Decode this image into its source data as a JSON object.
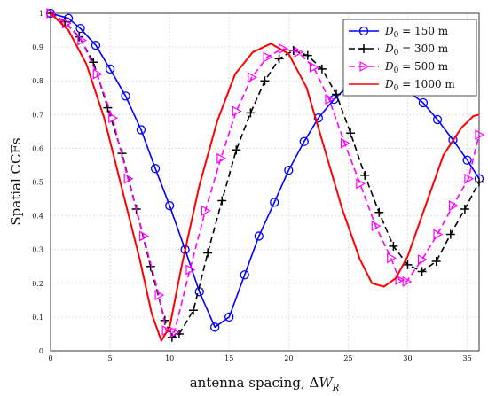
{
  "chart_data": {
    "type": "line",
    "xlabel": "antenna spacing, ΔW_R",
    "ylabel": "Spatial CCFs",
    "xlim": [
      0,
      36
    ],
    "ylim": [
      0,
      1
    ],
    "xticks": [
      "0",
      "5",
      "10",
      "15",
      "20",
      "25",
      "30",
      "35"
    ],
    "yticks": [
      "0",
      "0.1",
      "0.2",
      "0.3",
      "0.4",
      "0.5",
      "0.6",
      "0.7",
      "0.8",
      "0.9",
      "1"
    ],
    "grid": true,
    "legend_position": "top-right",
    "series": [
      {
        "name": "D_0 = 150 m",
        "color": "#0000ff",
        "line": "solid",
        "marker": "circle",
        "x": [
          0,
          1.5,
          2.5,
          3.8,
          5,
          6.3,
          7.6,
          8.8,
          10,
          11.3,
          12.5,
          13.8,
          15,
          16.3,
          17.5,
          18.8,
          20,
          21.3,
          22.5,
          23.8,
          25,
          26.3,
          27.5,
          28.8,
          30,
          31.3,
          32.5,
          33.8,
          35,
          36
        ],
        "y": [
          1.0,
          0.985,
          0.955,
          0.905,
          0.835,
          0.755,
          0.655,
          0.54,
          0.43,
          0.3,
          0.175,
          0.07,
          0.1,
          0.225,
          0.34,
          0.44,
          0.535,
          0.62,
          0.69,
          0.745,
          0.785,
          0.805,
          0.81,
          0.795,
          0.77,
          0.735,
          0.685,
          0.625,
          0.565,
          0.51
        ]
      },
      {
        "name": "D_0 = 300 m",
        "color": "#000000",
        "line": "dashed",
        "marker": "plus",
        "x": [
          0,
          1.2,
          2.4,
          3.6,
          4.8,
          6,
          7.2,
          8.4,
          9.6,
          10.2,
          10.8,
          12,
          13.2,
          14.4,
          15.6,
          16.8,
          18,
          19.2,
          20.4,
          21.6,
          22.8,
          24,
          25.2,
          26.4,
          27.6,
          28.8,
          30,
          31.2,
          32.4,
          33.6,
          34.8,
          36
        ],
        "y": [
          1.0,
          0.975,
          0.93,
          0.855,
          0.72,
          0.585,
          0.42,
          0.25,
          0.09,
          0.04,
          0.05,
          0.12,
          0.29,
          0.445,
          0.595,
          0.705,
          0.8,
          0.865,
          0.89,
          0.875,
          0.835,
          0.76,
          0.645,
          0.52,
          0.41,
          0.31,
          0.255,
          0.235,
          0.265,
          0.345,
          0.42,
          0.5
        ]
      },
      {
        "name": "D_0 = 500 m",
        "color": "#ff00ff",
        "line": "dashed",
        "marker": "triangle-right",
        "x": [
          0,
          1.3,
          2.6,
          3.9,
          5.2,
          6.5,
          7.8,
          9.1,
          9.7,
          10.4,
          11.7,
          13,
          14.3,
          15.6,
          16.9,
          18.2,
          19.5,
          20.8,
          22.1,
          23.4,
          24.7,
          26,
          27.3,
          28.6,
          29.3,
          29.9,
          31.2,
          32.5,
          33.8,
          35.1,
          36
        ],
        "y": [
          1.0,
          0.97,
          0.92,
          0.82,
          0.69,
          0.51,
          0.34,
          0.165,
          0.06,
          0.055,
          0.24,
          0.415,
          0.57,
          0.71,
          0.81,
          0.87,
          0.895,
          0.885,
          0.84,
          0.745,
          0.615,
          0.495,
          0.37,
          0.275,
          0.21,
          0.205,
          0.27,
          0.345,
          0.43,
          0.51,
          0.64
        ]
      },
      {
        "name": "D_0 = 1000 m",
        "color": "#ff0000",
        "line": "solid",
        "marker": "none",
        "x": [
          0,
          1.5,
          3,
          4.5,
          6,
          7.5,
          8.5,
          9.3,
          10,
          11,
          12.5,
          14,
          15.5,
          17,
          18.5,
          20,
          21.5,
          23,
          24.5,
          26,
          27,
          28,
          29,
          30,
          31.5,
          33,
          34.5,
          35.5,
          36
        ],
        "y": [
          1.0,
          0.95,
          0.85,
          0.69,
          0.48,
          0.27,
          0.11,
          0.03,
          0.07,
          0.25,
          0.49,
          0.68,
          0.82,
          0.885,
          0.91,
          0.88,
          0.78,
          0.6,
          0.42,
          0.27,
          0.2,
          0.19,
          0.215,
          0.28,
          0.43,
          0.58,
          0.66,
          0.695,
          0.7
        ]
      }
    ]
  }
}
